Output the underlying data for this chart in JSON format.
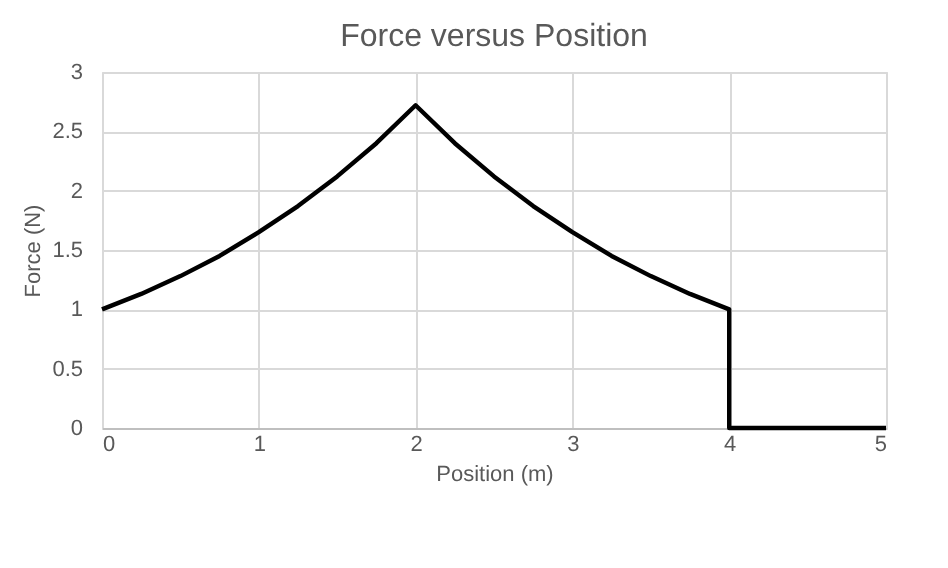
{
  "chart_data": {
    "type": "line",
    "title": "Force versus Position",
    "xlabel": "Position (m)",
    "ylabel": "Force (N)",
    "x": [
      0,
      0.25,
      0.5,
      0.75,
      1,
      1.25,
      1.5,
      1.75,
      2,
      2.25,
      2.5,
      2.75,
      3,
      3.25,
      3.5,
      3.75,
      4,
      4,
      5
    ],
    "series": [
      {
        "color": "#000000",
        "values": [
          1,
          1.13,
          1.28,
          1.45,
          1.65,
          1.87,
          2.12,
          2.4,
          2.72,
          2.4,
          2.12,
          1.87,
          1.65,
          1.45,
          1.28,
          1.13,
          1,
          0,
          0
        ]
      }
    ],
    "xlim": [
      0,
      5
    ],
    "xticks": [
      0,
      1,
      2,
      3,
      4,
      5
    ],
    "ylim": [
      0,
      3
    ],
    "yticks": [
      0,
      0.5,
      1,
      1.5,
      2,
      2.5,
      3
    ],
    "grid": true,
    "marker": "none",
    "line_style": "solid"
  }
}
